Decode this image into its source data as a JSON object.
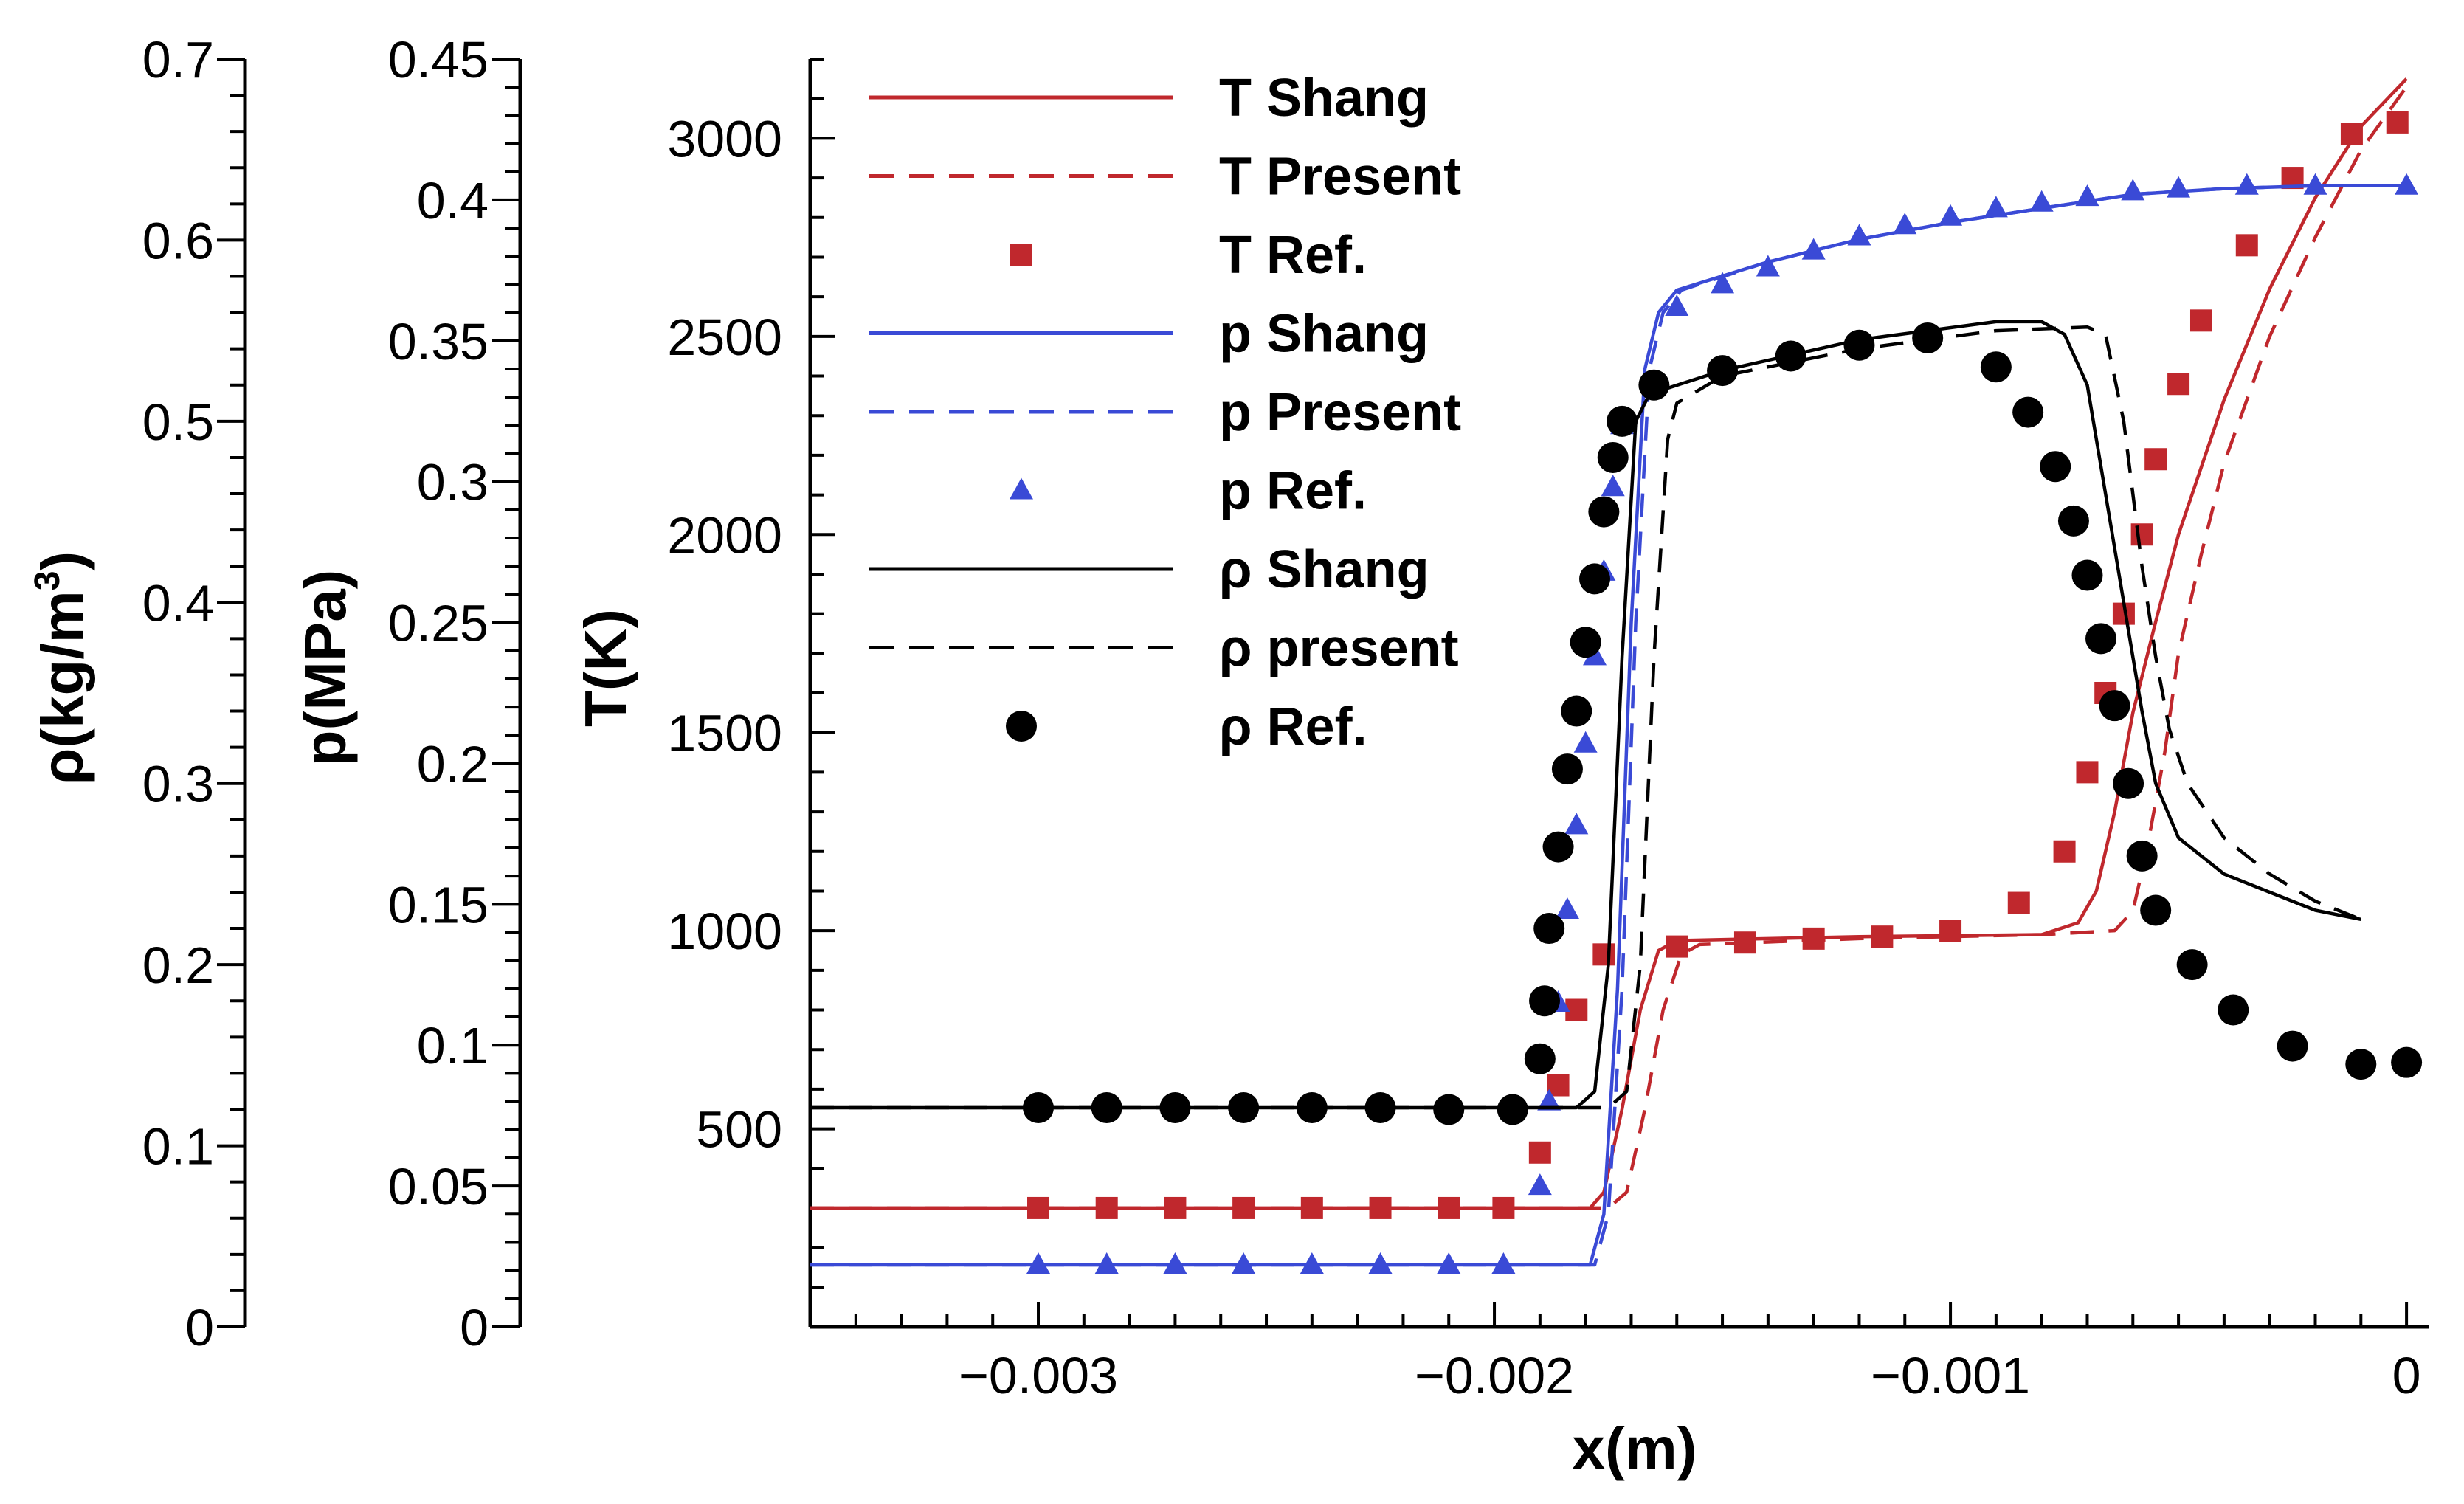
{
  "chart_data": {
    "type": "line",
    "title": "",
    "xlabel": "x(m)",
    "xlim": [
      -0.0035,
      5e-05
    ],
    "x_ticks": [
      -0.003,
      -0.002,
      -0.001,
      0
    ],
    "x_tick_labels": [
      "−0.003",
      "−0.002",
      "−0.001",
      "0"
    ],
    "axes": [
      {
        "id": "rho",
        "label_base": "ρ(kg/m",
        "label_sup": "3",
        "label_end": ")",
        "range": [
          0,
          0.7
        ],
        "ticks": [
          0,
          0.1,
          0.2,
          0.3,
          0.4,
          0.5,
          0.6,
          0.7
        ],
        "tick_labels": [
          "0",
          "0.1",
          "0.2",
          "0.3",
          "0.4",
          "0.5",
          "0.6",
          "0.7"
        ]
      },
      {
        "id": "p",
        "label": "p(MPa)",
        "range": [
          0,
          0.45
        ],
        "ticks": [
          0,
          0.05,
          0.1,
          0.15,
          0.2,
          0.25,
          0.3,
          0.35,
          0.4,
          0.45
        ],
        "tick_labels": [
          "0",
          "0.05",
          "0.1",
          "0.15",
          "0.2",
          "0.25",
          "0.3",
          "0.35",
          "0.4",
          "0.45"
        ]
      },
      {
        "id": "T",
        "label": "T(K)",
        "range": [
          0,
          3200
        ],
        "ticks": [
          500,
          1000,
          1500,
          2000,
          2500,
          3000
        ],
        "tick_labels": [
          "500",
          "1000",
          "1500",
          "2000",
          "2500",
          "3000"
        ]
      }
    ],
    "legend_position": "top-left inside plot",
    "series": [
      {
        "name": "T Shang",
        "style": "solid",
        "color": "#c0282d",
        "x": [
          -0.0035,
          -0.00179,
          -0.00176,
          -0.00172,
          -0.00168,
          -0.00164,
          -0.0016,
          -0.0012,
          -0.0008,
          -0.00072,
          -0.00068,
          -0.00064,
          -0.0006,
          -0.00055,
          -0.0005,
          -0.0004,
          -0.0003,
          -0.0002,
          -0.0001,
          0
        ],
        "y": [
          300,
          300,
          340,
          550,
          800,
          950,
          975,
          985,
          990,
          1020,
          1100,
          1300,
          1550,
          1780,
          2000,
          2340,
          2620,
          2850,
          3030,
          3150
        ]
      },
      {
        "name": "T Present",
        "style": "dashed",
        "color": "#c0282d",
        "x": [
          -0.0035,
          -0.00175,
          -0.00171,
          -0.00167,
          -0.00163,
          -0.00159,
          -0.00155,
          -0.0012,
          -0.0008,
          -0.00064,
          -0.0006,
          -0.00057,
          -0.00053,
          -0.0005,
          -0.00045,
          -0.0004,
          -0.0003,
          -0.0002,
          -0.0001,
          0
        ],
        "y": [
          300,
          300,
          340,
          550,
          800,
          940,
          965,
          980,
          990,
          1000,
          1050,
          1200,
          1450,
          1700,
          1950,
          2180,
          2500,
          2750,
          2970,
          3130
        ]
      },
      {
        "name": "T Ref.",
        "style": "square",
        "color": "#c0282d",
        "x": [
          -0.003,
          -0.00285,
          -0.0027,
          -0.00255,
          -0.0024,
          -0.00225,
          -0.0021,
          -0.00198,
          -0.0019,
          -0.00186,
          -0.00182,
          -0.00176,
          -0.0016,
          -0.00145,
          -0.0013,
          -0.00115,
          -0.001,
          -0.00085,
          -0.00075,
          -0.0007,
          -0.00066,
          -0.00062,
          -0.00058,
          -0.00055,
          -0.0005,
          -0.00045,
          -0.00035,
          -0.00025,
          -0.00012,
          -2e-05
        ],
        "y": [
          300,
          300,
          300,
          300,
          300,
          300,
          300,
          300,
          440,
          610,
          800,
          940,
          960,
          970,
          980,
          985,
          1000,
          1070,
          1200,
          1400,
          1600,
          1800,
          2000,
          2190,
          2380,
          2540,
          2730,
          2900,
          3010,
          3040
        ]
      },
      {
        "name": "p Shang",
        "style": "solid",
        "color": "#3a4ad6",
        "x": [
          -0.0035,
          -0.00179,
          -0.00176,
          -0.00173,
          -0.0017,
          -0.00167,
          -0.00164,
          -0.0016,
          -0.0014,
          -0.0012,
          -0.001,
          -0.0008,
          -0.0006,
          -0.0004,
          -0.0002,
          0
        ],
        "y": [
          0.022,
          0.022,
          0.04,
          0.12,
          0.25,
          0.34,
          0.36,
          0.368,
          0.378,
          0.386,
          0.392,
          0.397,
          0.402,
          0.404,
          0.405,
          0.405
        ]
      },
      {
        "name": "p Present",
        "style": "dashed",
        "color": "#3a4ad6",
        "x": [
          -0.0035,
          -0.00178,
          -0.00175,
          -0.00172,
          -0.00169,
          -0.00166,
          -0.00163,
          -0.00159,
          -0.0014,
          -0.0012,
          -0.001,
          -0.0008,
          -0.0006,
          -0.0004,
          -0.0002,
          0
        ],
        "y": [
          0.022,
          0.022,
          0.04,
          0.12,
          0.25,
          0.34,
          0.36,
          0.368,
          0.378,
          0.386,
          0.392,
          0.397,
          0.402,
          0.404,
          0.405,
          0.405
        ]
      },
      {
        "name": "p Ref.",
        "style": "triangle",
        "color": "#3a4ad6",
        "x": [
          -0.003,
          -0.00285,
          -0.0027,
          -0.00255,
          -0.0024,
          -0.00225,
          -0.0021,
          -0.00198,
          -0.0019,
          -0.00188,
          -0.00186,
          -0.00184,
          -0.00182,
          -0.0018,
          -0.00178,
          -0.00176,
          -0.00174,
          -0.00172,
          -0.0016,
          -0.0015,
          -0.0014,
          -0.0013,
          -0.0012,
          -0.0011,
          -0.001,
          -0.0009,
          -0.0008,
          -0.0007,
          -0.0006,
          -0.0005,
          -0.00035,
          -0.0002,
          0
        ],
        "y": [
          0.022,
          0.022,
          0.022,
          0.022,
          0.022,
          0.022,
          0.022,
          0.022,
          0.05,
          0.08,
          0.115,
          0.148,
          0.178,
          0.207,
          0.238,
          0.268,
          0.298,
          0.32,
          0.362,
          0.37,
          0.376,
          0.382,
          0.387,
          0.391,
          0.394,
          0.397,
          0.399,
          0.401,
          0.403,
          0.404,
          0.405,
          0.405,
          0.405
        ]
      },
      {
        "name": "ρ Shang",
        "style": "solid",
        "color": "#000000",
        "x": [
          -0.0035,
          -0.00182,
          -0.00178,
          -0.00175,
          -0.00172,
          -0.00169,
          -0.00166,
          -0.0015,
          -0.0012,
          -0.0009,
          -0.0008,
          -0.00075,
          -0.0007,
          -0.00066,
          -0.00062,
          -0.00058,
          -0.00055,
          -0.0005,
          -0.0004,
          -0.0003,
          -0.0002,
          -0.0001
        ],
        "y": [
          0.121,
          0.121,
          0.13,
          0.2,
          0.37,
          0.5,
          0.515,
          0.528,
          0.545,
          0.555,
          0.555,
          0.548,
          0.52,
          0.46,
          0.4,
          0.34,
          0.3,
          0.27,
          0.25,
          0.24,
          0.23,
          0.225
        ]
      },
      {
        "name": "ρ present",
        "style": "dashed",
        "color": "#000000",
        "x": [
          -0.0035,
          -0.00175,
          -0.00171,
          -0.00168,
          -0.00165,
          -0.00162,
          -0.0016,
          -0.0015,
          -0.0012,
          -0.0009,
          -0.0007,
          -0.00066,
          -0.00062,
          -0.00058,
          -0.00055,
          -0.00052,
          -0.00048,
          -0.0004,
          -0.0003,
          -0.0002,
          -0.0001
        ],
        "y": [
          0.121,
          0.121,
          0.13,
          0.2,
          0.37,
          0.49,
          0.51,
          0.525,
          0.54,
          0.55,
          0.552,
          0.548,
          0.5,
          0.42,
          0.37,
          0.33,
          0.3,
          0.27,
          0.25,
          0.235,
          0.225
        ]
      },
      {
        "name": "ρ Ref.",
        "style": "circle",
        "color": "#000000",
        "x": [
          -0.003,
          -0.00285,
          -0.0027,
          -0.00255,
          -0.0024,
          -0.00225,
          -0.0021,
          -0.00196,
          -0.0019,
          -0.00189,
          -0.00188,
          -0.00186,
          -0.00184,
          -0.00182,
          -0.0018,
          -0.00178,
          -0.00176,
          -0.00174,
          -0.00172,
          -0.00165,
          -0.0015,
          -0.00135,
          -0.0012,
          -0.00105,
          -0.0009,
          -0.00083,
          -0.00077,
          -0.00073,
          -0.0007,
          -0.00067,
          -0.00064,
          -0.00061,
          -0.00058,
          -0.00055,
          -0.00047,
          -0.00038,
          -0.00025,
          -0.0001,
          0
        ],
        "y": [
          0.121,
          0.121,
          0.121,
          0.121,
          0.121,
          0.121,
          0.12,
          0.12,
          0.148,
          0.18,
          0.22,
          0.265,
          0.308,
          0.34,
          0.378,
          0.413,
          0.45,
          0.48,
          0.5,
          0.52,
          0.528,
          0.536,
          0.542,
          0.546,
          0.53,
          0.505,
          0.475,
          0.445,
          0.415,
          0.38,
          0.343,
          0.3,
          0.26,
          0.23,
          0.2,
          0.175,
          0.155,
          0.145,
          0.146
        ]
      }
    ]
  }
}
